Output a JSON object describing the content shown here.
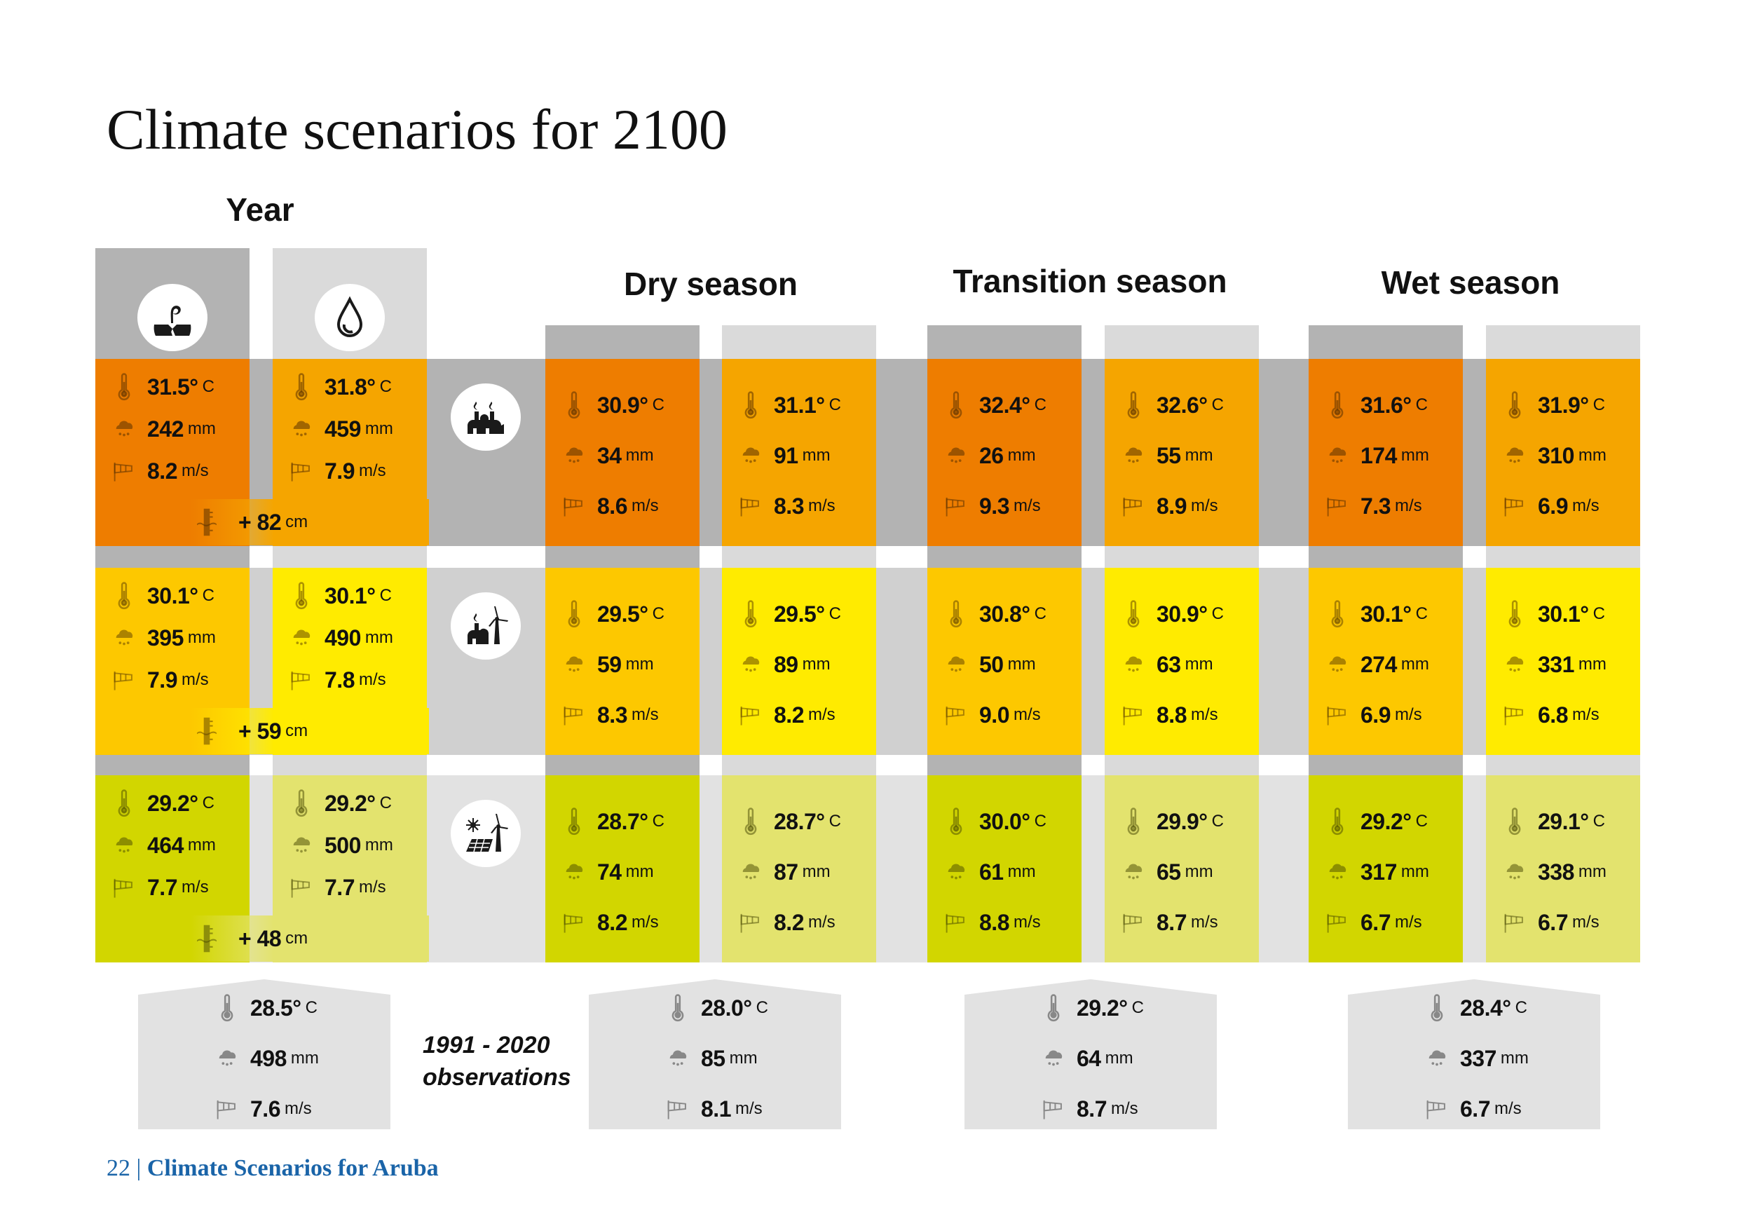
{
  "title": "Climate scenarios for 2100",
  "units": {
    "temp": "C",
    "precip": "mm",
    "wind": "m/s",
    "sea": "cm"
  },
  "colors": {
    "row_cell_a": [
      "#ee7d00",
      "#fdc800",
      "#d2d600"
    ],
    "row_cell_b": [
      "#f5a500",
      "#ffeb00",
      "#e3e36e"
    ],
    "row_band": [
      "#b3b3b3",
      "#d0d0d0",
      "#e2e2e2"
    ],
    "col_dark": "#b3b3b3",
    "col_light": "#dadada",
    "footer": "#1a64a8"
  },
  "year_header_icons": [
    "dry-plant-icon",
    "water-drop-icon"
  ],
  "scenario_icons": [
    "fossil-factory-icon",
    "factory-wind-turbine-icon",
    "solar-wind-icon"
  ],
  "groups": [
    {
      "title": "Year",
      "rows": [
        {
          "cells": [
            {
              "temp": "31.5°",
              "precip": "242",
              "wind": "8.2"
            },
            {
              "temp": "31.8°",
              "precip": "459",
              "wind": "7.9"
            }
          ],
          "sea": "+ 82"
        },
        {
          "cells": [
            {
              "temp": "30.1°",
              "precip": "395",
              "wind": "7.9"
            },
            {
              "temp": "30.1°",
              "precip": "490",
              "wind": "7.8"
            }
          ],
          "sea": "+ 59"
        },
        {
          "cells": [
            {
              "temp": "29.2°",
              "precip": "464",
              "wind": "7.7"
            },
            {
              "temp": "29.2°",
              "precip": "500",
              "wind": "7.7"
            }
          ],
          "sea": "+ 48"
        }
      ],
      "observation": {
        "temp": "28.5°",
        "precip": "498",
        "wind": "7.6"
      }
    },
    {
      "title": "Dry season",
      "rows": [
        {
          "cells": [
            {
              "temp": "30.9°",
              "precip": "34",
              "wind": "8.6"
            },
            {
              "temp": "31.1°",
              "precip": "91",
              "wind": "8.3"
            }
          ]
        },
        {
          "cells": [
            {
              "temp": "29.5°",
              "precip": "59",
              "wind": "8.3"
            },
            {
              "temp": "29.5°",
              "precip": "89",
              "wind": "8.2"
            }
          ]
        },
        {
          "cells": [
            {
              "temp": "28.7°",
              "precip": "74",
              "wind": "8.2"
            },
            {
              "temp": "28.7°",
              "precip": "87",
              "wind": "8.2"
            }
          ]
        }
      ],
      "observation": {
        "temp": "28.0°",
        "precip": "85",
        "wind": "8.1"
      }
    },
    {
      "title": "Transition season",
      "rows": [
        {
          "cells": [
            {
              "temp": "32.4°",
              "precip": "26",
              "wind": "9.3"
            },
            {
              "temp": "32.6°",
              "precip": "55",
              "wind": "8.9"
            }
          ]
        },
        {
          "cells": [
            {
              "temp": "30.8°",
              "precip": "50",
              "wind": "9.0"
            },
            {
              "temp": "30.9°",
              "precip": "63",
              "wind": "8.8"
            }
          ]
        },
        {
          "cells": [
            {
              "temp": "30.0°",
              "precip": "61",
              "wind": "8.8"
            },
            {
              "temp": "29.9°",
              "precip": "65",
              "wind": "8.7"
            }
          ]
        }
      ],
      "observation": {
        "temp": "29.2°",
        "precip": "64",
        "wind": "8.7"
      }
    },
    {
      "title": "Wet season",
      "rows": [
        {
          "cells": [
            {
              "temp": "31.6°",
              "precip": "174",
              "wind": "7.3"
            },
            {
              "temp": "31.9°",
              "precip": "310",
              "wind": "6.9"
            }
          ]
        },
        {
          "cells": [
            {
              "temp": "30.1°",
              "precip": "274",
              "wind": "6.9"
            },
            {
              "temp": "30.1°",
              "precip": "331",
              "wind": "6.8"
            }
          ]
        },
        {
          "cells": [
            {
              "temp": "29.2°",
              "precip": "317",
              "wind": "6.7"
            },
            {
              "temp": "29.1°",
              "precip": "338",
              "wind": "6.7"
            }
          ]
        }
      ],
      "observation": {
        "temp": "28.4°",
        "precip": "337",
        "wind": "6.7"
      }
    }
  ],
  "observation_label": {
    "line1": "1991 - 2020",
    "line2": "observations"
  },
  "footer": {
    "page": "22",
    "separator": "|",
    "title": "Climate Scenarios for Aruba"
  }
}
